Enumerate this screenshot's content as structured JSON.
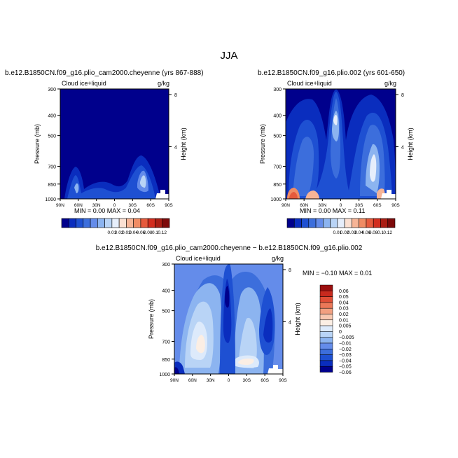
{
  "figure": {
    "title": "JJA"
  },
  "colors": {
    "sequential": [
      "#00008c",
      "#0a2dbe",
      "#1e50d2",
      "#3c6edc",
      "#648cea",
      "#8cb4f0",
      "#b9d4f6",
      "#e6eefb",
      "#fbe0d2",
      "#f6b496",
      "#f08c64",
      "#e65a3c",
      "#d22d1e",
      "#aa1e14",
      "#7d0a0a"
    ],
    "diverging": [
      "#00008c",
      "#0a2dbe",
      "#1e50d2",
      "#3c6edc",
      "#648cea",
      "#8cb4f0",
      "#b9d4f6",
      "#ddeafb",
      "#fbeee4",
      "#f8c8b0",
      "#f2a080",
      "#eb7858",
      "#e04e36",
      "#c82a1e",
      "#9b0f0f"
    ]
  },
  "chart_data": [
    {
      "type": "heatmap",
      "title": "b.e12.B1850CN.f09_g16.plio_cam2000.cheyenne (yrs 867-888)",
      "subtitle_left": "Cloud ice+liquid",
      "subtitle_right": "g/kg",
      "ylabel": "Pressure (mb)",
      "ylabel_right": "Height (km)",
      "xticks": [
        "90N",
        "60N",
        "30N",
        "0",
        "30S",
        "60S",
        "90S"
      ],
      "yticks": [
        "300",
        "400",
        "500",
        "700",
        "850",
        "1000"
      ],
      "yticks_right": [
        "8",
        "4"
      ],
      "stats_text": "MIN =     0.00   MAX =     0.04",
      "min": 0.0,
      "max": 0.04,
      "colorbar_levels": [
        "0.01",
        "0.02",
        "0.03",
        "0.04",
        "0.06",
        "0.08",
        "0.1",
        "0.12"
      ]
    },
    {
      "type": "heatmap",
      "title": "b.e12.B1850CN.f09_g16.plio.002 (yrs 601-650)",
      "subtitle_left": "Cloud ice+liquid",
      "subtitle_right": "g/kg",
      "ylabel": "Pressure (mb)",
      "ylabel_right": "Height (km)",
      "xticks": [
        "90N",
        "60N",
        "30N",
        "0",
        "30S",
        "60S",
        "90S"
      ],
      "yticks": [
        "300",
        "400",
        "500",
        "700",
        "850",
        "1000"
      ],
      "yticks_right": [
        "8",
        "4"
      ],
      "stats_text": "MIN =     0.00   MAX =     0.11",
      "min": 0.0,
      "max": 0.11,
      "colorbar_levels": [
        "0.01",
        "0.02",
        "0.03",
        "0.04",
        "0.06",
        "0.08",
        "0.1",
        "0.12"
      ]
    },
    {
      "type": "heatmap",
      "title": "b.e12.B1850CN.f09_g16.plio_cam2000.cheyenne − b.e12.B1850CN.f09_g16.plio.002",
      "subtitle_left": "Cloud ice+liquid",
      "subtitle_right": "g/kg",
      "ylabel": "Pressure (mb)",
      "ylabel_right": "Height (km)",
      "xticks": [
        "90N",
        "60N",
        "30N",
        "0",
        "30S",
        "60S",
        "90S"
      ],
      "yticks": [
        "300",
        "400",
        "500",
        "700",
        "850",
        "1000"
      ],
      "yticks_right": [
        "8",
        "4"
      ],
      "stats_text": "MIN =    −0.10   MAX =     0.01",
      "min": -0.1,
      "max": 0.01,
      "colorbar_levels": [
        "0.06",
        "0.05",
        "0.04",
        "0.03",
        "0.02",
        "0.01",
        "0.005",
        "0",
        "−0.005",
        "−0.01",
        "−0.02",
        "−0.03",
        "−0.04",
        "−0.05",
        "−0.06"
      ]
    }
  ]
}
